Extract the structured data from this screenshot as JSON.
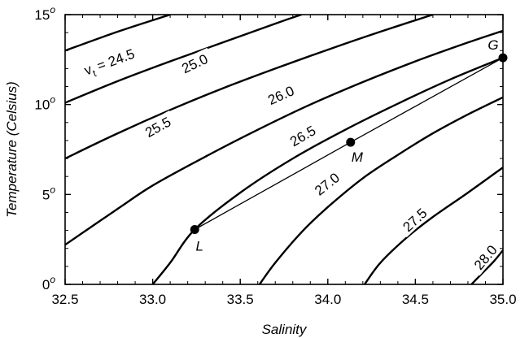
{
  "chart_data": {
    "type": "line",
    "xlabel": "Salinity",
    "ylabel": "Temperature (Celsius)",
    "xlim": [
      32.5,
      35.0
    ],
    "ylim": [
      0,
      15
    ],
    "x_ticks": [
      "32.5",
      "33.0",
      "33.5",
      "34.0",
      "34.5",
      "35.0"
    ],
    "y_ticks": [
      {
        "value": 0,
        "label": "0",
        "sup": "o"
      },
      {
        "value": 5,
        "label": "5",
        "sup": "o"
      },
      {
        "value": 10,
        "label": "10",
        "sup": "o"
      },
      {
        "value": 15,
        "label": "15",
        "sup": "o"
      }
    ],
    "grid": false,
    "series": [
      {
        "name": "24.5",
        "label": "= 24.5",
        "label_prefix": "v",
        "label_sub": "t",
        "points": [
          [
            32.5,
            13.0
          ],
          [
            32.8,
            14.05
          ],
          [
            33.1,
            15.0
          ]
        ]
      },
      {
        "name": "25.0",
        "label": "25.0",
        "points": [
          [
            32.5,
            10.1
          ],
          [
            32.8,
            11.3
          ],
          [
            33.1,
            12.4
          ],
          [
            33.4,
            13.45
          ],
          [
            33.7,
            14.5
          ],
          [
            33.85,
            15.0
          ]
        ]
      },
      {
        "name": "25.5",
        "label": "25.5",
        "points": [
          [
            32.5,
            7.0
          ],
          [
            32.8,
            8.4
          ],
          [
            33.1,
            9.7
          ],
          [
            33.4,
            10.9
          ],
          [
            33.7,
            12.0
          ],
          [
            34.0,
            13.05
          ],
          [
            34.3,
            14.05
          ],
          [
            34.6,
            15.0
          ]
        ]
      },
      {
        "name": "26.0",
        "label": "26.0",
        "points": [
          [
            32.5,
            2.2
          ],
          [
            32.8,
            4.2
          ],
          [
            33.0,
            5.5
          ],
          [
            33.3,
            7.1
          ],
          [
            33.6,
            8.6
          ],
          [
            33.9,
            10.0
          ],
          [
            34.2,
            11.25
          ],
          [
            34.5,
            12.4
          ],
          [
            34.8,
            13.45
          ],
          [
            35.0,
            14.1
          ]
        ]
      },
      {
        "name": "26.5",
        "label": "26.5",
        "points": [
          [
            33.0,
            0.0
          ],
          [
            33.1,
            1.2
          ],
          [
            33.24,
            3.05
          ],
          [
            33.5,
            5.1
          ],
          [
            33.8,
            7.0
          ],
          [
            34.1,
            8.6
          ],
          [
            34.4,
            10.05
          ],
          [
            34.7,
            11.4
          ],
          [
            35.0,
            12.6
          ]
        ]
      },
      {
        "name": "27.0",
        "label": "27.0",
        "points": [
          [
            33.61,
            0.0
          ],
          [
            33.7,
            1.2
          ],
          [
            33.85,
            2.9
          ],
          [
            34.0,
            4.3
          ],
          [
            34.2,
            5.9
          ],
          [
            34.4,
            7.2
          ],
          [
            34.6,
            8.4
          ],
          [
            34.8,
            9.45
          ],
          [
            35.0,
            10.4
          ]
        ]
      },
      {
        "name": "27.5",
        "label": "27.5",
        "points": [
          [
            34.21,
            0.0
          ],
          [
            34.3,
            1.2
          ],
          [
            34.45,
            2.6
          ],
          [
            34.6,
            3.75
          ],
          [
            34.8,
            5.1
          ],
          [
            35.0,
            6.5
          ]
        ]
      },
      {
        "name": "28.0",
        "label": "28.0",
        "points": [
          [
            34.82,
            0.0
          ],
          [
            34.88,
            0.6
          ],
          [
            34.95,
            1.3
          ],
          [
            35.0,
            1.9
          ]
        ]
      }
    ],
    "mixing_line": [
      [
        33.24,
        3.05
      ],
      [
        34.13,
        7.9
      ],
      [
        35.0,
        12.6
      ]
    ],
    "labeled_points": [
      {
        "name": "L",
        "x": 33.24,
        "y": 3.05
      },
      {
        "name": "M",
        "x": 34.13,
        "y": 7.9
      },
      {
        "name": "G",
        "x": 35.0,
        "y": 12.6
      }
    ]
  }
}
